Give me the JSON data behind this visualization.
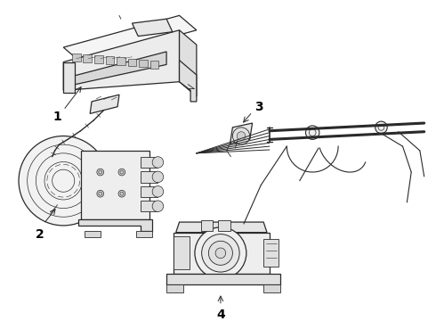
{
  "bg_color": "#ffffff",
  "line_color": "#2a2a2a",
  "label_color": "#000000",
  "fig_width": 4.9,
  "fig_height": 3.6,
  "dpi": 100,
  "lw_main": 0.9,
  "lw_detail": 0.6,
  "lw_thin": 0.4
}
